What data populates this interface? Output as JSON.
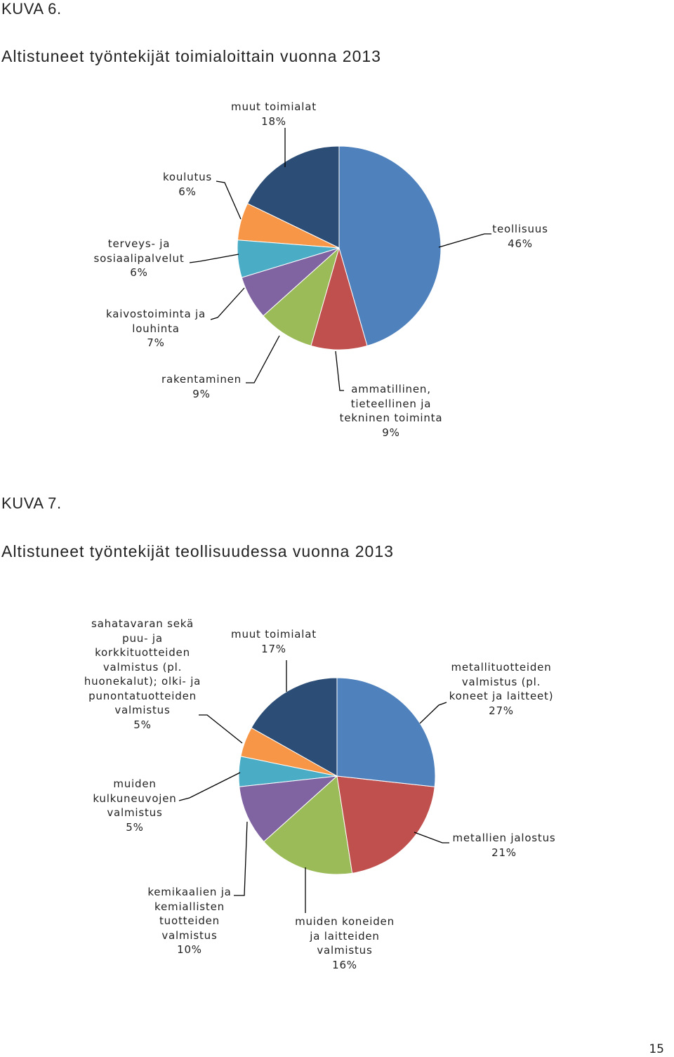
{
  "chart_data": [
    {
      "type": "pie",
      "label": "KUVA 6.",
      "title": "Altistuneet työntekijät toimialoittain vuonna 2013",
      "categories": [
        "teollisuus",
        "ammatillinen, tieteellinen ja tekninen toiminta",
        "rakentaminen",
        "kaivostoiminta ja louhinta",
        "terveys- ja sosiaalipalvelut",
        "koulutus",
        "muut toimialat"
      ],
      "values": [
        46,
        9,
        9,
        7,
        6,
        6,
        18
      ],
      "value_labels": [
        "46%",
        "9%",
        "9%",
        "7%",
        "6%",
        "6%",
        "18%"
      ],
      "colors": [
        "#4f81bd",
        "#c0504d",
        "#9bbb59",
        "#8064a2",
        "#4bacc6",
        "#f79646",
        "#2c4d75"
      ]
    },
    {
      "type": "pie",
      "label": "KUVA 7.",
      "title": "Altistuneet työntekijät teollisuudessa vuonna 2013",
      "categories": [
        "metallituotteiden valmistus (pl. koneet ja laitteet)",
        "metallien jalostus",
        "muiden koneiden ja laitteiden valmistus",
        "kemikaalien ja kemiallisten tuotteiden valmistus",
        "muiden kulkuneuvojen valmistus",
        "sahatavaran sekä puu- ja korkkituotteiden valmistus (pl. huonekalut); olki- ja punontatuotteiden valmistus",
        "muut toimialat"
      ],
      "values": [
        27,
        21,
        16,
        10,
        5,
        5,
        17
      ],
      "value_labels": [
        "27%",
        "21%",
        "16%",
        "10%",
        "5%",
        "5%",
        "17%"
      ],
      "colors": [
        "#4f81bd",
        "#c0504d",
        "#9bbb59",
        "#8064a2",
        "#4bacc6",
        "#f79646",
        "#2c4d75"
      ]
    }
  ],
  "page_number": "15"
}
